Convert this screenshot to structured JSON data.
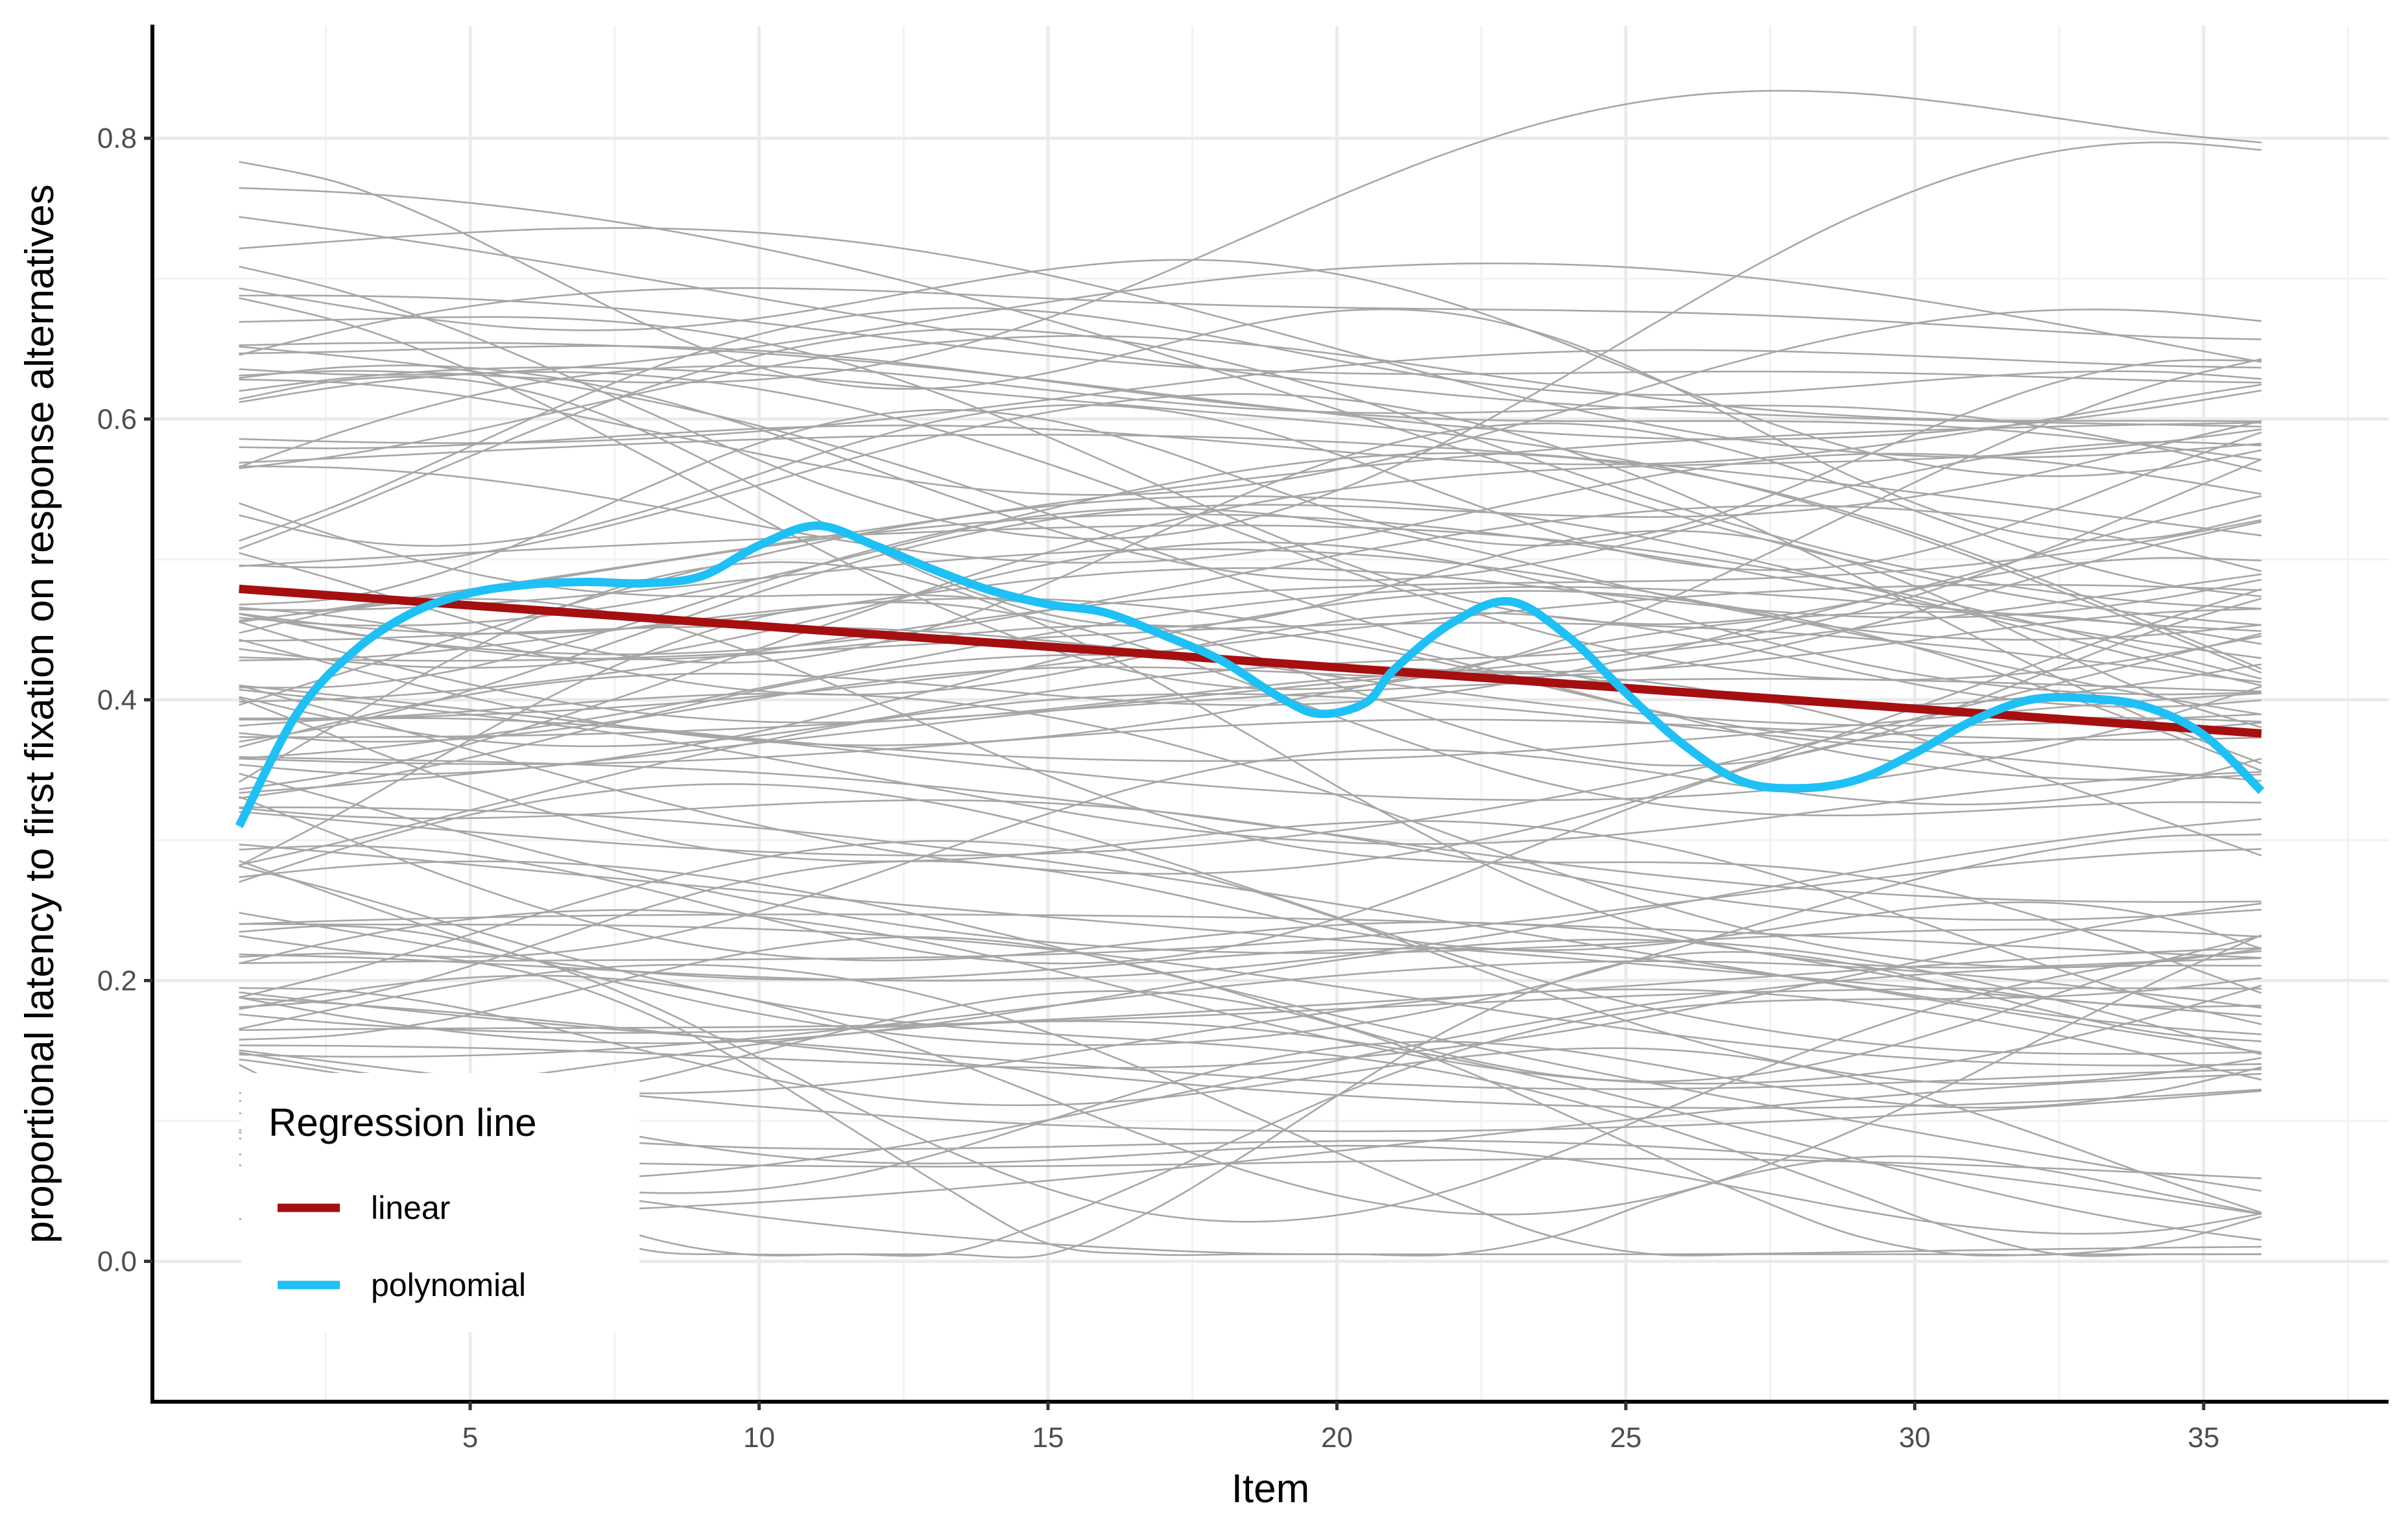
{
  "chart_data": {
    "type": "line",
    "title": "",
    "xlabel": "Item",
    "ylabel": "proportional latency to first fixation on response alternatives",
    "xlim": [
      -0.5,
      38.2
    ],
    "ylim": [
      -0.1,
      0.88
    ],
    "x_ticks": [
      5,
      10,
      15,
      20,
      25,
      30,
      35
    ],
    "y_ticks": [
      0.0,
      0.2,
      0.4,
      0.6,
      0.8
    ],
    "x_tick_labels": [
      "5",
      "10",
      "15",
      "20",
      "25",
      "30",
      "35"
    ],
    "y_tick_labels": [
      "0.0",
      "0.2",
      "0.4",
      "0.6",
      "0.8"
    ],
    "grid": true,
    "background_series": {
      "description_count": 120,
      "color": "#a6a6a6",
      "x_range": [
        1,
        36
      ],
      "y_range": [
        0.0,
        0.84
      ]
    },
    "series": [
      {
        "name": "linear",
        "color": "#a50f0f",
        "x": [
          1,
          36
        ],
        "y": [
          0.479,
          0.376
        ]
      },
      {
        "name": "polynomial",
        "color": "#1ec0f5",
        "x": [
          1,
          2,
          3,
          4,
          5,
          6,
          7,
          8,
          9,
          10,
          11,
          12,
          13,
          14,
          15,
          16,
          17,
          18,
          19,
          19.7,
          20.5,
          21,
          22,
          23,
          24,
          25,
          26,
          27,
          28,
          29,
          30,
          31,
          32,
          33,
          34,
          35,
          36
        ],
        "y": [
          0.31,
          0.39,
          0.435,
          0.462,
          0.476,
          0.482,
          0.484,
          0.483,
          0.488,
          0.51,
          0.524,
          0.51,
          0.493,
          0.478,
          0.468,
          0.462,
          0.446,
          0.428,
          0.402,
          0.39,
          0.398,
          0.422,
          0.455,
          0.47,
          0.445,
          0.405,
          0.368,
          0.342,
          0.337,
          0.343,
          0.362,
          0.385,
          0.4,
          0.401,
          0.395,
          0.375,
          0.335
        ]
      }
    ],
    "legend": {
      "title": "Regression line",
      "position": "bottom-left",
      "entries": [
        {
          "label": "linear",
          "color": "#a50f0f"
        },
        {
          "label": "polynomial",
          "color": "#1ec0f5"
        }
      ]
    }
  }
}
